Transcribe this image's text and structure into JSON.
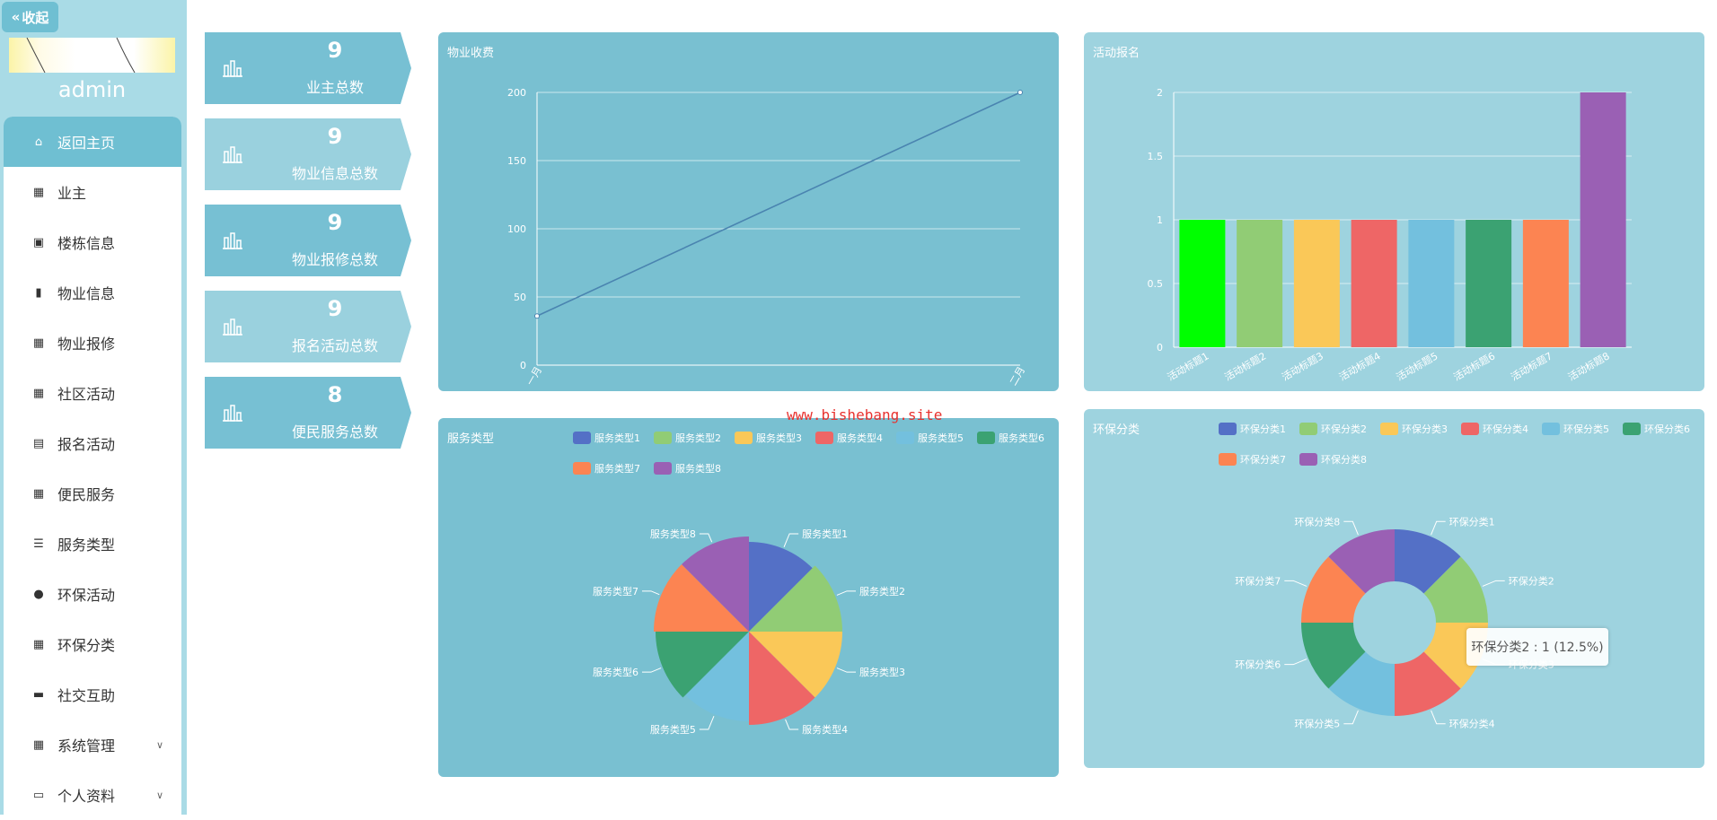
{
  "sidebar": {
    "collapse_label": "收起",
    "username": "admin",
    "items": [
      {
        "label": "返回主页",
        "icon": "home-icon",
        "active": true
      },
      {
        "label": "业主",
        "icon": "grid-icon"
      },
      {
        "label": "楼栋信息",
        "icon": "clipboard-check-icon"
      },
      {
        "label": "物业信息",
        "icon": "book-icon"
      },
      {
        "label": "物业报修",
        "icon": "grid-icon"
      },
      {
        "label": "社区活动",
        "icon": "grid-icon"
      },
      {
        "label": "报名活动",
        "icon": "clipboard-icon"
      },
      {
        "label": "便民服务",
        "icon": "grid-icon"
      },
      {
        "label": "服务类型",
        "icon": "list-icon"
      },
      {
        "label": "环保活动",
        "icon": "lightbulb-icon"
      },
      {
        "label": "环保分类",
        "icon": "grid-icon"
      },
      {
        "label": "社交互助",
        "icon": "message-icon"
      },
      {
        "label": "系统管理",
        "icon": "grid-icon",
        "expandable": true
      },
      {
        "label": "个人资料",
        "icon": "card-icon",
        "expandable": true
      }
    ]
  },
  "stats": [
    {
      "value": "9",
      "label": "业主总数",
      "color": "#77c0d3"
    },
    {
      "value": "9",
      "label": "物业信息总数",
      "color": "#9ad1de"
    },
    {
      "value": "9",
      "label": "物业报修总数",
      "color": "#77c0d3"
    },
    {
      "value": "9",
      "label": "报名活动总数",
      "color": "#9ad1de"
    },
    {
      "value": "8",
      "label": "便民服务总数",
      "color": "#77c0d3"
    }
  ],
  "charts": {
    "line": {
      "title": "物业收费"
    },
    "bar": {
      "title": "活动报名"
    },
    "pie": {
      "title": "服务类型"
    },
    "donut": {
      "title": "环保分类"
    }
  },
  "palette": [
    "#5470c6",
    "#91cc75",
    "#fac858",
    "#ee6666",
    "#73c0de",
    "#3ba272",
    "#fc8452",
    "#9a60b4"
  ],
  "chart_data": [
    {
      "type": "line",
      "title": "物业收费",
      "categories": [
        "一月",
        "二月"
      ],
      "series": [
        {
          "values": [
            36,
            200
          ]
        }
      ],
      "ylim": [
        0,
        200
      ],
      "yticks": [
        0,
        50,
        100,
        150,
        200
      ]
    },
    {
      "type": "bar",
      "title": "活动报名",
      "categories": [
        "活动标题1",
        "活动标题2",
        "活动标题3",
        "活动标题4",
        "活动标题5",
        "活动标题6",
        "活动标题7",
        "活动标题8"
      ],
      "values": [
        1,
        1,
        1,
        1,
        1,
        1,
        1,
        2
      ],
      "colors": [
        "#00ff00",
        "#91cc75",
        "#fac858",
        "#ee6666",
        "#73c0de",
        "#3ba272",
        "#fc8452",
        "#9a60b4"
      ],
      "ylim": [
        0,
        2
      ],
      "yticks": [
        0,
        0.5,
        1,
        1.5,
        2
      ]
    },
    {
      "type": "pie",
      "title": "服务类型",
      "categories": [
        "服务类型1",
        "服务类型2",
        "服务类型3",
        "服务类型4",
        "服务类型5",
        "服务类型6",
        "服务类型7",
        "服务类型8"
      ],
      "values": [
        1,
        1,
        1,
        1,
        1,
        1,
        1,
        1
      ],
      "rose": true,
      "legend_position": "top"
    },
    {
      "type": "pie",
      "title": "环保分类",
      "categories": [
        "环保分类1",
        "环保分类2",
        "环保分类3",
        "环保分类4",
        "环保分类5",
        "环保分类6",
        "环保分类7",
        "环保分类8"
      ],
      "values": [
        1,
        1,
        1,
        1,
        1,
        1,
        1,
        1
      ],
      "donut": true,
      "legend_position": "top"
    }
  ],
  "tooltip": "环保分类2 : 1 (12.5%)",
  "watermark": "www.bishebang.site"
}
